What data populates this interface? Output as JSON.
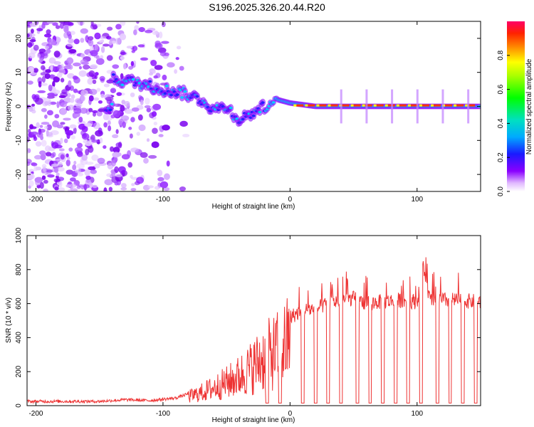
{
  "title": "S196.2025.326.20.44.R20",
  "chart_data": [
    {
      "type": "heatmap",
      "name": "spectrogram",
      "xlabel": "Height of straight line (km)",
      "ylabel": "Frequency (Hz)",
      "xlim": [
        -207,
        150
      ],
      "ylim": [
        -25,
        25
      ],
      "xticks": [
        -200,
        -100,
        0,
        100
      ],
      "yticks": [
        -20,
        -10,
        0,
        10,
        20
      ],
      "xtick_labels": [
        "-200",
        "-100",
        "0",
        "100"
      ],
      "ytick_labels": [
        "-20",
        "-10",
        "0",
        "10",
        "20"
      ],
      "colorbar": {
        "label": "Normalized spectral amplitude",
        "range": [
          0,
          1
        ],
        "ticks": [
          0.0,
          0.2,
          0.4,
          0.6,
          0.8
        ],
        "tick_labels": [
          "0.0",
          "0.2",
          "0.4",
          "0.6",
          "0.8"
        ]
      },
      "ridge": {
        "description_points_x": [
          -140,
          -120,
          -100,
          -85,
          -70,
          -60,
          -50,
          -40,
          -30,
          -20,
          -10,
          0,
          20,
          60,
          100,
          150
        ],
        "description_points_freq": [
          8,
          7,
          5,
          4,
          2,
          -1,
          0,
          -4,
          -2,
          0,
          2,
          1,
          0,
          0,
          0,
          0
        ]
      }
    },
    {
      "type": "line",
      "name": "snr",
      "xlabel": "Height of straight line (km)",
      "ylabel": "SNR (10 * v/v)",
      "xlim": [
        -207,
        150
      ],
      "ylim": [
        0,
        1000
      ],
      "xticks": [
        -200,
        -100,
        0,
        100
      ],
      "yticks": [
        0,
        200,
        400,
        600,
        800,
        1000
      ],
      "xtick_labels": [
        "-200",
        "-100",
        "0",
        "100"
      ],
      "ytick_labels": [
        "0",
        "200",
        "400",
        "600",
        "800",
        "1000"
      ],
      "color": "#ee3333",
      "series": [
        {
          "name": "SNR",
          "x": [
            -207,
            -180,
            -150,
            -130,
            -110,
            -90,
            -80,
            -70,
            -60,
            -50,
            -40,
            -30,
            -20,
            -10,
            0,
            10,
            20,
            30,
            40,
            50,
            60,
            70,
            80,
            90,
            100,
            105,
            110,
            120,
            130,
            140,
            150
          ],
          "values": [
            25,
            25,
            25,
            35,
            30,
            45,
            70,
            100,
            140,
            180,
            230,
            300,
            380,
            430,
            520,
            560,
            570,
            600,
            620,
            630,
            600,
            610,
            615,
            620,
            610,
            820,
            620,
            620,
            620,
            615,
            610
          ]
        }
      ]
    }
  ]
}
